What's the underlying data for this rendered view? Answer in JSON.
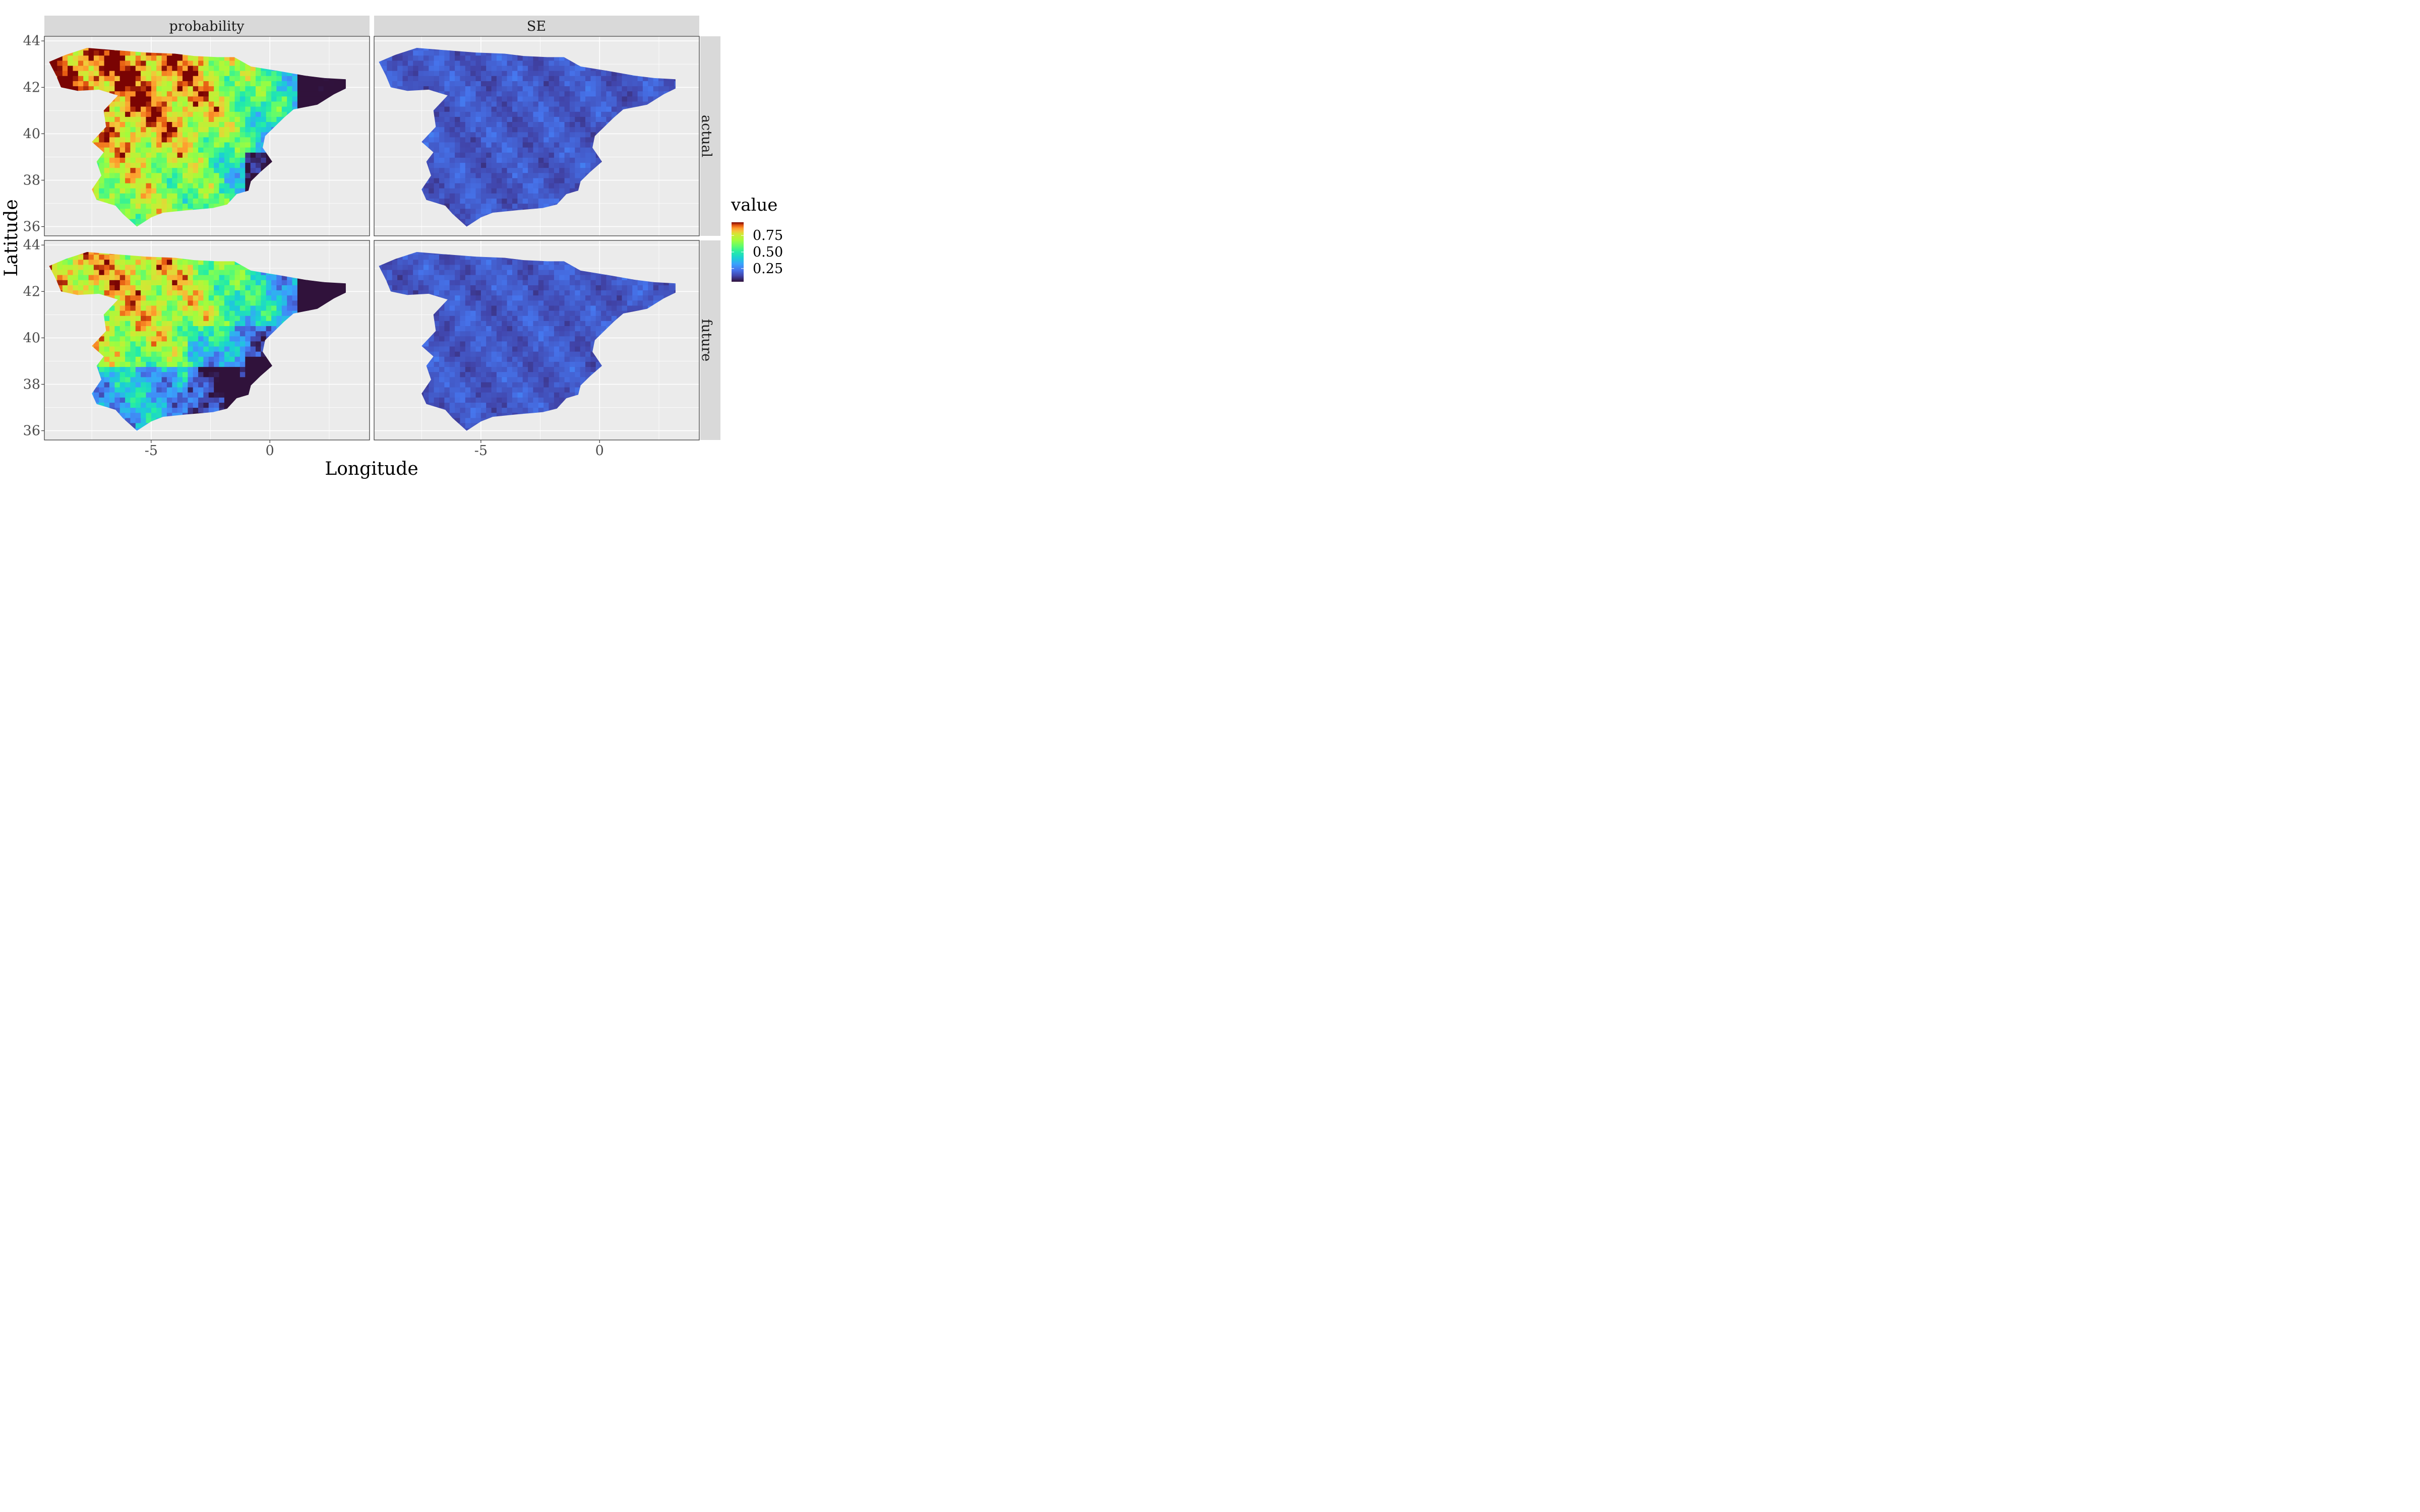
{
  "chart_data": {
    "type": "heatmap",
    "facets": {
      "columns": [
        "probability",
        "SE"
      ],
      "rows": [
        "actual",
        "future"
      ]
    },
    "xlabel": "Longitude",
    "ylabel": "Latitude",
    "x_ticks": [
      -5,
      0
    ],
    "x_tick_labels": [
      "-5",
      "0"
    ],
    "y_ticks": [
      36,
      38,
      40,
      42,
      44
    ],
    "y_tick_labels": [
      "36",
      "38",
      "40",
      "42",
      "44"
    ],
    "xlim": [
      -9.5,
      4.2
    ],
    "ylim": [
      35.6,
      44.2
    ],
    "grid": true,
    "region": "Iberian Peninsula (Spain)",
    "legend": {
      "title": "value",
      "position": "right",
      "ticks": [
        0.25,
        0.5,
        0.75
      ],
      "tick_labels": [
        "0.25",
        "0.50",
        "0.75"
      ],
      "range": [
        0.05,
        0.95
      ],
      "colormap": "turbo"
    },
    "panels": [
      {
        "column": "probability",
        "row": "actual",
        "mean_value": 0.6,
        "dominant": "high (orange-red) in north-west and west, low (dark blue) in north-east and south-east coast"
      },
      {
        "column": "SE",
        "row": "actual",
        "mean_value": 0.12,
        "dominant": "low (dark blue) everywhere"
      },
      {
        "column": "probability",
        "row": "future",
        "mean_value": 0.45,
        "dominant": "high in north-west and north, low in east and south"
      },
      {
        "column": "SE",
        "row": "future",
        "mean_value": 0.13,
        "dominant": "low (dark blue) everywhere"
      }
    ]
  },
  "colors": {
    "panel_background": "#ebebeb",
    "strip_background": "#d9d9d9",
    "grid_major": "#ffffff",
    "panel_border": "#333333"
  }
}
